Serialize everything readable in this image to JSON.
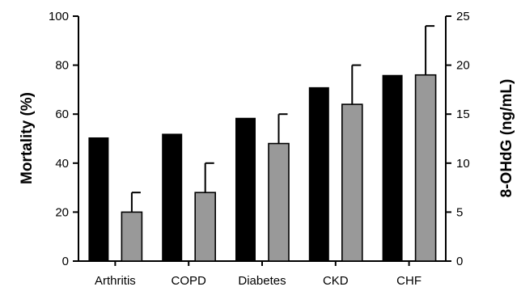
{
  "chart_data": {
    "type": "bar",
    "categories": [
      "Arthritis",
      "COPD",
      "Diabetes",
      "CKD",
      "CHF"
    ],
    "series": [
      {
        "values": [
          50.5,
          52,
          58.5,
          71,
          76
        ],
        "color": "#000000",
        "axis": "left"
      },
      {
        "values": [
          5,
          7,
          12,
          16,
          19
        ],
        "error": [
          2,
          3,
          3,
          4,
          5
        ],
        "color": "#999999",
        "axis": "right"
      }
    ],
    "ylabel": "Mortality (%)",
    "y2label": "8-OHdG (ng/mL)",
    "ylim": [
      0,
      100
    ],
    "y2lim": [
      0,
      25
    ],
    "yticks": [
      "0",
      "20",
      "40",
      "60",
      "80",
      "100"
    ],
    "y2ticks": [
      "0",
      "5",
      "10",
      "15",
      "20",
      "25"
    ],
    "grid": false
  }
}
